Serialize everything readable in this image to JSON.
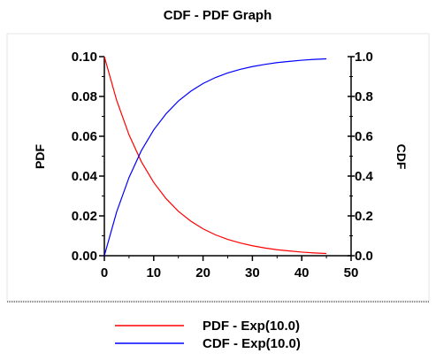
{
  "chart_data": {
    "type": "line",
    "title": "CDF - PDF Graph",
    "xlabel": "",
    "ylabel_left": "PDF",
    "ylabel_right": "CDF",
    "xlim": [
      0,
      50
    ],
    "ylim_left": [
      0,
      0.1
    ],
    "ylim_right": [
      0,
      1.0
    ],
    "x_ticks": [
      "0",
      "10",
      "20",
      "30",
      "40",
      "50"
    ],
    "y_left_ticks": [
      "0.00",
      "0.02",
      "0.04",
      "0.06",
      "0.08",
      "0.10"
    ],
    "y_right_ticks": [
      "0.0",
      "0.2",
      "0.4",
      "0.6",
      "0.8",
      "1.0"
    ],
    "series": [
      {
        "name": "PDF - Exp(10.0)",
        "axis": "left",
        "color": "#ff0000",
        "x": [
          0,
          2.5,
          5,
          7.5,
          10,
          12.5,
          15,
          17.5,
          20,
          22.5,
          25,
          27.5,
          30,
          32.5,
          35,
          37.5,
          40,
          42.5,
          45
        ],
        "values": [
          0.1,
          0.078,
          0.0607,
          0.0472,
          0.0368,
          0.0287,
          0.0223,
          0.0174,
          0.0135,
          0.0105,
          0.0082,
          0.0064,
          0.005,
          0.0039,
          0.003,
          0.0024,
          0.0018,
          0.0014,
          0.0011
        ]
      },
      {
        "name": "CDF - Exp(10.0)",
        "axis": "right",
        "color": "#0000ff",
        "x": [
          0,
          2.5,
          5,
          7.5,
          10,
          12.5,
          15,
          17.5,
          20,
          22.5,
          25,
          27.5,
          30,
          32.5,
          35,
          37.5,
          40,
          42.5,
          45
        ],
        "values": [
          0,
          0.221,
          0.393,
          0.528,
          0.632,
          0.713,
          0.777,
          0.826,
          0.865,
          0.895,
          0.918,
          0.936,
          0.95,
          0.961,
          0.97,
          0.976,
          0.982,
          0.986,
          0.989
        ]
      }
    ],
    "legend_position": "bottom",
    "grid": false
  }
}
